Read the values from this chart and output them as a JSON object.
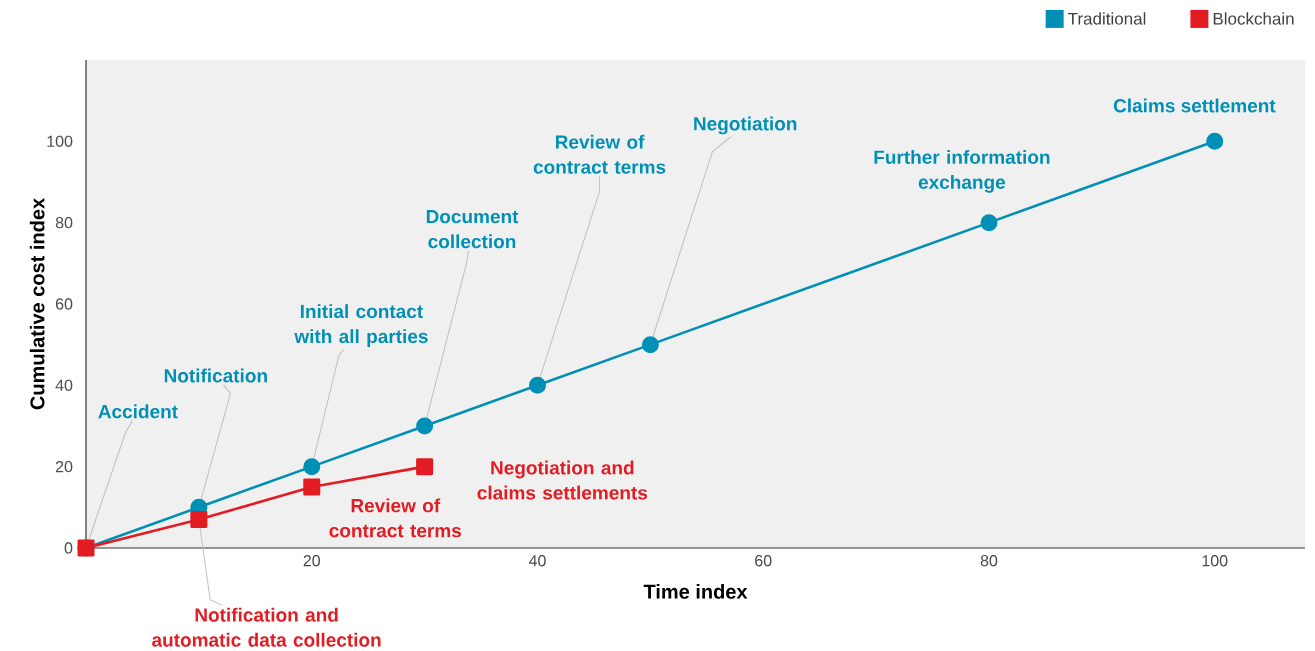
{
  "chart_data": {
    "type": "line",
    "xlabel": "Time index",
    "ylabel": "Cumulative cost index",
    "xlim": [
      0,
      108
    ],
    "ylim": [
      0,
      120
    ],
    "xticks": [
      20,
      40,
      60,
      80,
      100
    ],
    "yticks": [
      0,
      20,
      40,
      60,
      80,
      100
    ],
    "x": [
      0,
      10,
      20,
      30,
      40,
      50,
      80,
      100
    ],
    "series": [
      {
        "name": "Traditional",
        "color": "#0090b6",
        "marker": "circle",
        "values": [
          0,
          10,
          20,
          30,
          40,
          50,
          80,
          100
        ]
      },
      {
        "name": "Blockchain",
        "color": "#e31b23",
        "marker": "square",
        "x": [
          0,
          10,
          20,
          30
        ],
        "values": [
          0,
          7,
          15,
          20
        ]
      }
    ],
    "annotations": [
      {
        "text": "Accident",
        "x": 0,
        "y": 0
      },
      {
        "text": "Notification",
        "x": 10,
        "y": 10
      },
      {
        "text": "Initial contact with all parties",
        "x": 20,
        "y": 20
      },
      {
        "text": "Document collection",
        "x": 30,
        "y": 30
      },
      {
        "text": "Review of contract terms",
        "x": 40,
        "y": 40
      },
      {
        "text": "Negotiation",
        "x": 50,
        "y": 50
      },
      {
        "text": "Further information exchange",
        "x": 80,
        "y": 80
      },
      {
        "text": "Claims settlement",
        "x": 100,
        "y": 100
      },
      {
        "text": "Notification and automatic data collection",
        "x": 10,
        "y": 7
      },
      {
        "text": "Review of contract terms",
        "x": 20,
        "y": 15
      },
      {
        "text": "Negotiation and claims settlements",
        "x": 30,
        "y": 20
      }
    ],
    "grid": false,
    "legend": "top right",
    "line_style": "solid"
  }
}
